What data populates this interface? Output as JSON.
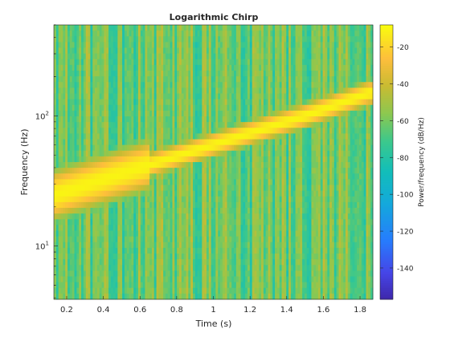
{
  "chart_data": {
    "type": "heatmap",
    "title": "Logarithmic Chirp",
    "xlabel": "Time (s)",
    "ylabel": "Frequency (Hz)",
    "colorbar_label": "Power/frequency (dB/Hz)",
    "xlim": [
      0.13,
      1.87
    ],
    "ylim": [
      3.9,
      500
    ],
    "y_scale": "log",
    "x_ticks": [
      "0.2",
      "0.4",
      "0.6",
      "0.8",
      "1",
      "1.2",
      "1.4",
      "1.6",
      "1.8"
    ],
    "y_ticks": [
      {
        "base": "10",
        "exp": "1",
        "value": 10
      },
      {
        "base": "10",
        "exp": "2",
        "value": 100
      }
    ],
    "colorbar_ticks": [
      "-20",
      "-40",
      "-60",
      "-80",
      "-100",
      "-120",
      "-140"
    ],
    "clim": [
      -157,
      -8
    ],
    "colormap": "parula",
    "chirp_ridge": {
      "description_points": [
        {
          "t": 0.15,
          "f": 25
        },
        {
          "t": 0.5,
          "f": 36
        },
        {
          "t": 1.0,
          "f": 60
        },
        {
          "t": 1.5,
          "f": 100
        },
        {
          "t": 1.85,
          "f": 150
        }
      ],
      "peak_db": -10
    }
  }
}
